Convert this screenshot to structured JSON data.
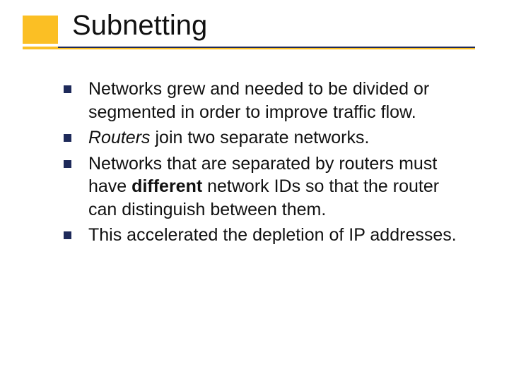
{
  "slide": {
    "title": "Subnetting",
    "bullets": [
      {
        "prefix": "",
        "italic": "",
        "mid1": "Networks grew and needed to be divided or segmented in order to improve traffic flow.",
        "bold": "",
        "mid2": ""
      },
      {
        "prefix": "",
        "italic": "Routers",
        "mid1": " join two separate networks.",
        "bold": "",
        "mid2": ""
      },
      {
        "prefix": "Networks that are separated by routers must have ",
        "italic": "",
        "mid1": "",
        "bold": "different",
        "mid2": " network IDs so that the router can distinguish between them."
      },
      {
        "prefix": "This accelerated the depletion of IP addresses.",
        "italic": "",
        "mid1": "",
        "bold": "",
        "mid2": ""
      }
    ]
  },
  "style": {
    "accent_color": "#fbbf24",
    "underline_navy": "#1e2a5a",
    "bullet_color": "#1e2a5a",
    "title_fontsize": 40,
    "body_fontsize": 25,
    "background": "#ffffff"
  }
}
